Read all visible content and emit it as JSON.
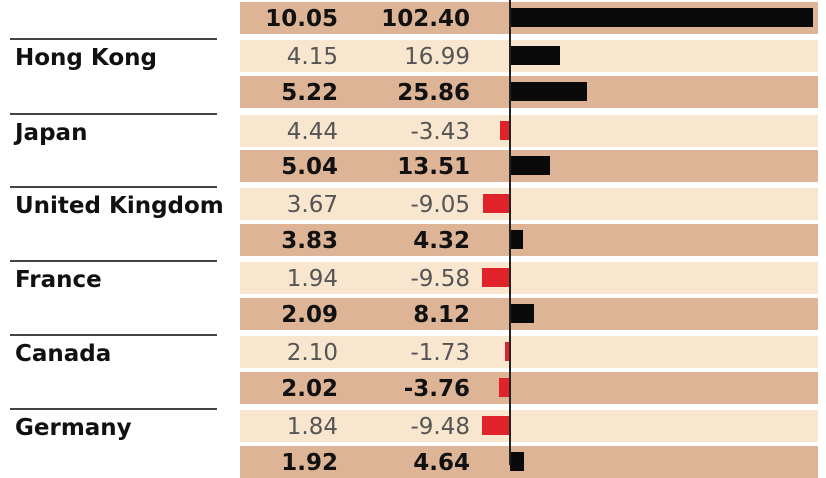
{
  "chart_data": {
    "type": "table",
    "bar_colors": {
      "positive": "#0a0a0a",
      "negative": "#e0232b"
    },
    "band_colors": {
      "light": "#f8e6cf",
      "dark": "#ddb496"
    },
    "rows": [
      {
        "country": "",
        "col1": "10.05",
        "col2": "102.40",
        "value": 102.4,
        "bold": true
      },
      {
        "country": "Hong Kong",
        "col1": "4.15",
        "col2": "16.99",
        "value": 16.99,
        "bold": false
      },
      {
        "country": "",
        "col1": "5.22",
        "col2": "25.86",
        "value": 25.86,
        "bold": true
      },
      {
        "country": "Japan",
        "col1": "4.44",
        "col2": "-3.43",
        "value": -3.43,
        "bold": false
      },
      {
        "country": "",
        "col1": "5.04",
        "col2": "13.51",
        "value": 13.51,
        "bold": true
      },
      {
        "country": "United Kingdom",
        "col1": "3.67",
        "col2": "-9.05",
        "value": -9.05,
        "bold": false
      },
      {
        "country": "",
        "col1": "3.83",
        "col2": "4.32",
        "value": 4.32,
        "bold": true
      },
      {
        "country": "France",
        "col1": "1.94",
        "col2": "-9.58",
        "value": -9.58,
        "bold": false
      },
      {
        "country": "",
        "col1": "2.09",
        "col2": "8.12",
        "value": 8.12,
        "bold": true
      },
      {
        "country": "Canada",
        "col1": "2.10",
        "col2": "-1.73",
        "value": -1.73,
        "bold": false
      },
      {
        "country": "",
        "col1": "2.02",
        "col2": "-3.76",
        "value": -3.76,
        "bold": true
      },
      {
        "country": "Germany",
        "col1": "1.84",
        "col2": "-9.48",
        "value": -9.48,
        "bold": false
      },
      {
        "country": "",
        "col1": "1.92",
        "col2": "4.64",
        "value": 4.64,
        "bold": true
      }
    ]
  }
}
